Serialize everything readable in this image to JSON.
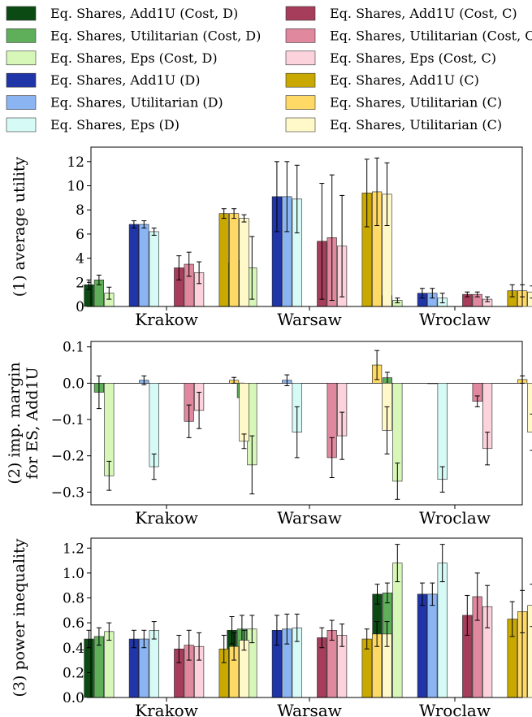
{
  "legend": [
    {
      "label": "Eq. Shares, Add1U (Cost, D)",
      "color": "#0b4a12"
    },
    {
      "label": "Eq. Shares, Utilitarian (Cost, D)",
      "color": "#5faf5a"
    },
    {
      "label": "Eq. Shares, Eps (Cost, D)",
      "color": "#d6f7b8"
    },
    {
      "label": "Eq. Shares, Add1U (D)",
      "color": "#1f35a8"
    },
    {
      "label": "Eq. Shares, Utilitarian (D)",
      "color": "#8ab4f2"
    },
    {
      "label": "Eq. Shares, Eps (D)",
      "color": "#d6fbf6"
    },
    {
      "label": "Eq. Shares, Add1U (Cost, C)",
      "color": "#a63d5b"
    },
    {
      "label": "Eq. Shares, Utilitarian (Cost, C)",
      "color": "#e0889e"
    },
    {
      "label": "Eq. Shares, Eps (Cost, C)",
      "color": "#fcd2dc"
    },
    {
      "label": "Eq. Shares, Add1U (C)",
      "color": "#c9a800"
    },
    {
      "label": "Eq. Shares, Utilitarian (C)",
      "color": "#ffd966"
    },
    {
      "label": "Eq. Shares, Utilitarian (C)",
      "color": "#fff8c8"
    }
  ],
  "chart_data": [
    {
      "type": "bar",
      "ylabel": [
        "(1) average utility"
      ],
      "categories": [
        "Krakow",
        "Warsaw",
        "Wroclaw"
      ],
      "ylim": [
        0,
        13.2
      ],
      "yticks": [
        0,
        2,
        4,
        6,
        8,
        10,
        12
      ],
      "ytick_labels": [
        "0",
        "2",
        "4",
        "6",
        "8",
        "10",
        "12"
      ],
      "series": [
        {
          "values": [
            1.8,
            3.6,
            0.9
          ],
          "err": [
            0.4,
            3.2,
            0.2
          ]
        },
        {
          "values": [
            2.2,
            3.8,
            0.9
          ],
          "err": [
            0.4,
            3.4,
            0.2
          ]
        },
        {
          "values": [
            1.1,
            3.2,
            0.5
          ],
          "err": [
            0.5,
            2.6,
            0.2
          ]
        },
        {
          "values": [
            6.8,
            9.1,
            1.1
          ],
          "err": [
            0.3,
            2.9,
            0.4
          ]
        },
        {
          "values": [
            6.8,
            9.1,
            1.1
          ],
          "err": [
            0.3,
            2.9,
            0.4
          ]
        },
        {
          "values": [
            6.2,
            8.9,
            0.7
          ],
          "err": [
            0.3,
            2.8,
            0.4
          ]
        },
        {
          "values": [
            3.2,
            5.4,
            1.0
          ],
          "err": [
            1.0,
            4.8,
            0.2
          ]
        },
        {
          "values": [
            3.5,
            5.7,
            1.0
          ],
          "err": [
            1.0,
            5.2,
            0.2
          ]
        },
        {
          "values": [
            2.8,
            5.0,
            0.6
          ],
          "err": [
            0.9,
            4.2,
            0.2
          ]
        },
        {
          "values": [
            7.7,
            9.4,
            1.3
          ],
          "err": [
            0.4,
            2.8,
            0.5
          ]
        },
        {
          "values": [
            7.7,
            9.5,
            1.3
          ],
          "err": [
            0.4,
            2.8,
            0.5
          ]
        },
        {
          "values": [
            7.3,
            9.3,
            1.2
          ],
          "err": [
            0.3,
            2.6,
            0.5
          ]
        }
      ]
    },
    {
      "type": "bar",
      "ylabel": [
        "(2) imp. margin",
        "for ES, Add1U"
      ],
      "categories": [
        "Krakow",
        "Warsaw",
        "Wroclaw"
      ],
      "ylim": [
        -0.335,
        0.115
      ],
      "yticks": [
        0.1,
        0.0,
        -0.1,
        -0.2,
        -0.3
      ],
      "ytick_labels": [
        "0.1",
        "0.0",
        "−0.1",
        "−0.2",
        "−0.3"
      ],
      "series": [
        {
          "values": [
            null,
            null,
            null
          ],
          "err": [
            0,
            0,
            0
          ]
        },
        {
          "values": [
            -0.025,
            -0.04,
            0.015
          ],
          "err": [
            0.045,
            0.04,
            0.015
          ]
        },
        {
          "values": [
            -0.255,
            -0.225,
            -0.27
          ],
          "err": [
            0.04,
            0.08,
            0.05
          ]
        },
        {
          "values": [
            null,
            null,
            null
          ],
          "err": [
            0,
            0,
            0
          ]
        },
        {
          "values": [
            0.008,
            0.008,
            0.0
          ],
          "err": [
            0.012,
            0.015,
            0.0
          ]
        },
        {
          "values": [
            -0.23,
            -0.135,
            -0.265
          ],
          "err": [
            0.035,
            0.07,
            0.035
          ]
        },
        {
          "values": [
            null,
            null,
            null
          ],
          "err": [
            0,
            0,
            0
          ]
        },
        {
          "values": [
            -0.105,
            -0.205,
            -0.05
          ],
          "err": [
            0.045,
            0.055,
            0.015
          ]
        },
        {
          "values": [
            -0.075,
            -0.145,
            -0.18
          ],
          "err": [
            0.05,
            0.065,
            0.045
          ]
        },
        {
          "values": [
            null,
            null,
            null
          ],
          "err": [
            0,
            0,
            0
          ]
        },
        {
          "values": [
            0.008,
            0.05,
            0.01
          ],
          "err": [
            0.008,
            0.04,
            0.01
          ]
        },
        {
          "values": [
            -0.16,
            -0.13,
            -0.135
          ],
          "err": [
            0.02,
            0.065,
            0.05
          ]
        }
      ]
    },
    {
      "type": "bar",
      "ylabel": [
        "(3) power inequality"
      ],
      "categories": [
        "Krakow",
        "Warsaw",
        "Wroclaw"
      ],
      "ylim": [
        0,
        1.28
      ],
      "yticks": [
        0.0,
        0.2,
        0.4,
        0.6,
        0.8,
        1.0,
        1.2
      ],
      "ytick_labels": [
        "0.0",
        "0.2",
        "0.4",
        "0.6",
        "0.8",
        "1.0",
        "1.2"
      ],
      "series": [
        {
          "values": [
            0.47,
            0.54,
            0.83
          ],
          "err": [
            0.07,
            0.11,
            0.08
          ]
        },
        {
          "values": [
            0.49,
            0.55,
            0.84
          ],
          "err": [
            0.07,
            0.11,
            0.08
          ]
        },
        {
          "values": [
            0.53,
            0.55,
            1.08
          ],
          "err": [
            0.07,
            0.11,
            0.15
          ]
        },
        {
          "values": [
            0.47,
            0.54,
            0.83
          ],
          "err": [
            0.07,
            0.12,
            0.09
          ]
        },
        {
          "values": [
            0.47,
            0.55,
            0.83
          ],
          "err": [
            0.07,
            0.12,
            0.09
          ]
        },
        {
          "values": [
            0.54,
            0.56,
            1.08
          ],
          "err": [
            0.07,
            0.11,
            0.15
          ]
        },
        {
          "values": [
            0.39,
            0.48,
            0.66
          ],
          "err": [
            0.11,
            0.08,
            0.16
          ]
        },
        {
          "values": [
            0.42,
            0.54,
            0.81
          ],
          "err": [
            0.12,
            0.08,
            0.19
          ]
        },
        {
          "values": [
            0.41,
            0.5,
            0.73
          ],
          "err": [
            0.11,
            0.09,
            0.17
          ]
        },
        {
          "values": [
            0.39,
            0.47,
            0.63
          ],
          "err": [
            0.11,
            0.08,
            0.14
          ]
        },
        {
          "values": [
            0.41,
            0.51,
            0.69
          ],
          "err": [
            0.11,
            0.1,
            0.17
          ]
        },
        {
          "values": [
            0.46,
            0.51,
            0.74
          ],
          "err": [
            0.08,
            0.1,
            0.17
          ]
        }
      ]
    }
  ]
}
